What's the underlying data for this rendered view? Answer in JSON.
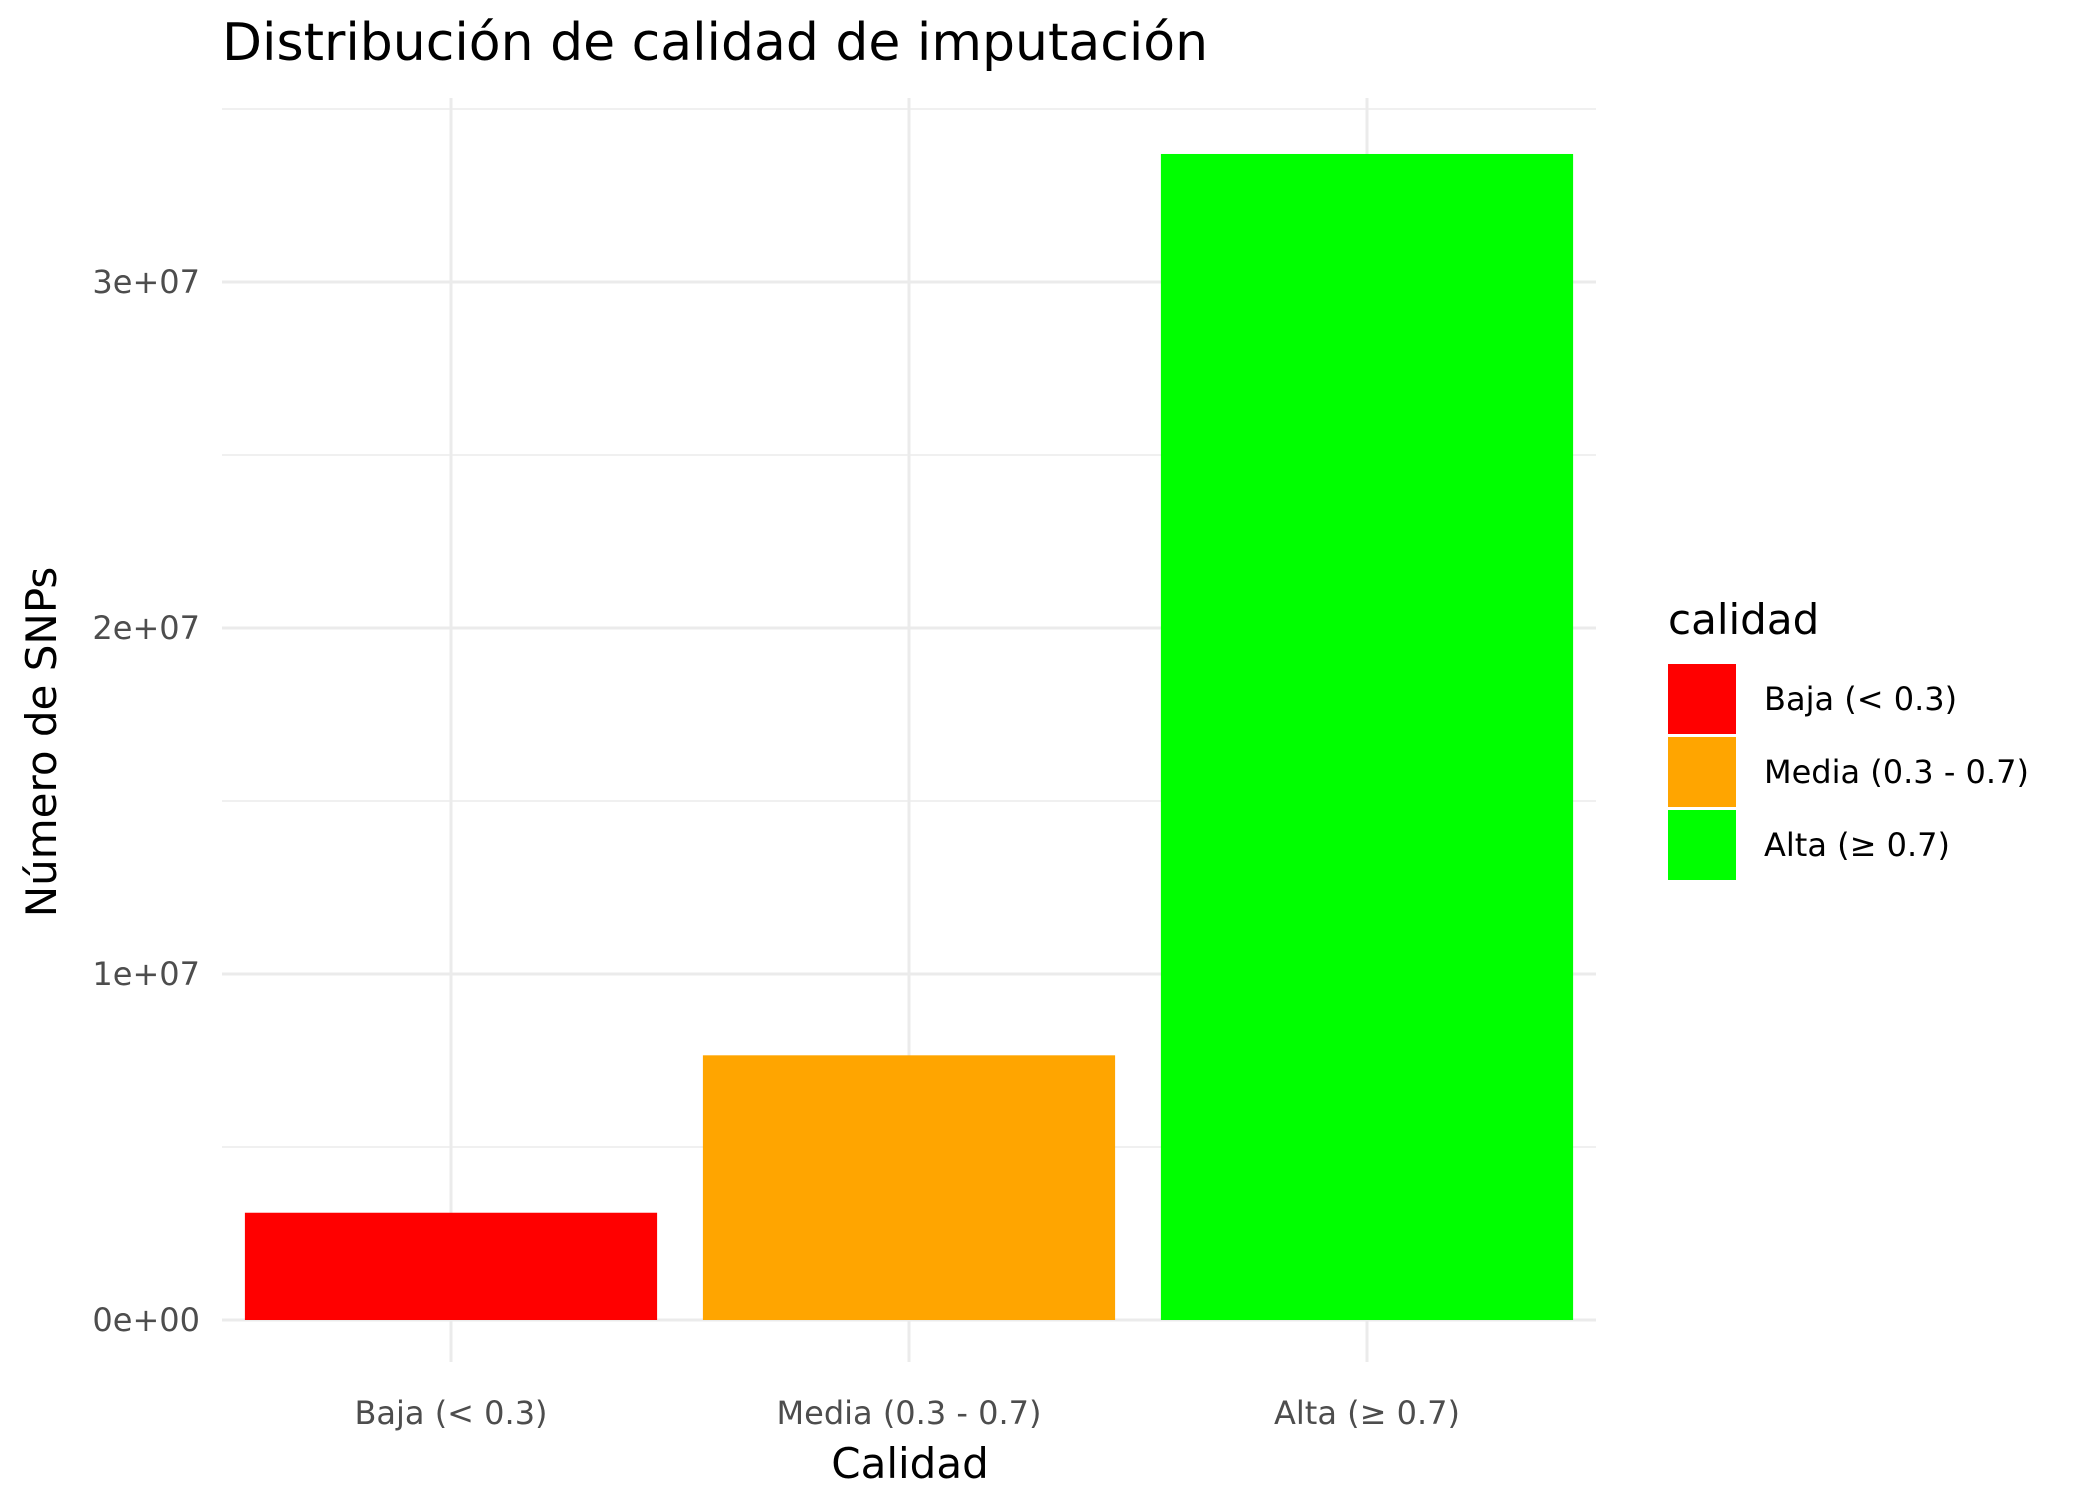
{
  "chart_data": {
    "type": "bar",
    "title": "Distribución de calidad de imputación",
    "xlabel": "Calidad",
    "ylabel": "Número de SNPs",
    "categories": [
      "Baja (< 0.3)",
      "Media (0.3 - 0.7)",
      "Alta (≥ 0.7)"
    ],
    "values": [
      3100000,
      7650000,
      33700000
    ],
    "colors": [
      "#ff0000",
      "#ffa500",
      "#00ff00"
    ],
    "yticks": [
      0,
      10000000,
      20000000,
      30000000
    ],
    "ytick_labels": [
      "0e+00",
      "1e+07",
      "2e+07",
      "3e+07"
    ],
    "ylim": [
      0,
      35000000
    ],
    "grid": true,
    "legend": {
      "title": "calidad",
      "position": "right",
      "entries": [
        "Baja (< 0.3)",
        "Media (0.3 - 0.7)",
        "Alta (≥ 0.7)"
      ]
    }
  }
}
